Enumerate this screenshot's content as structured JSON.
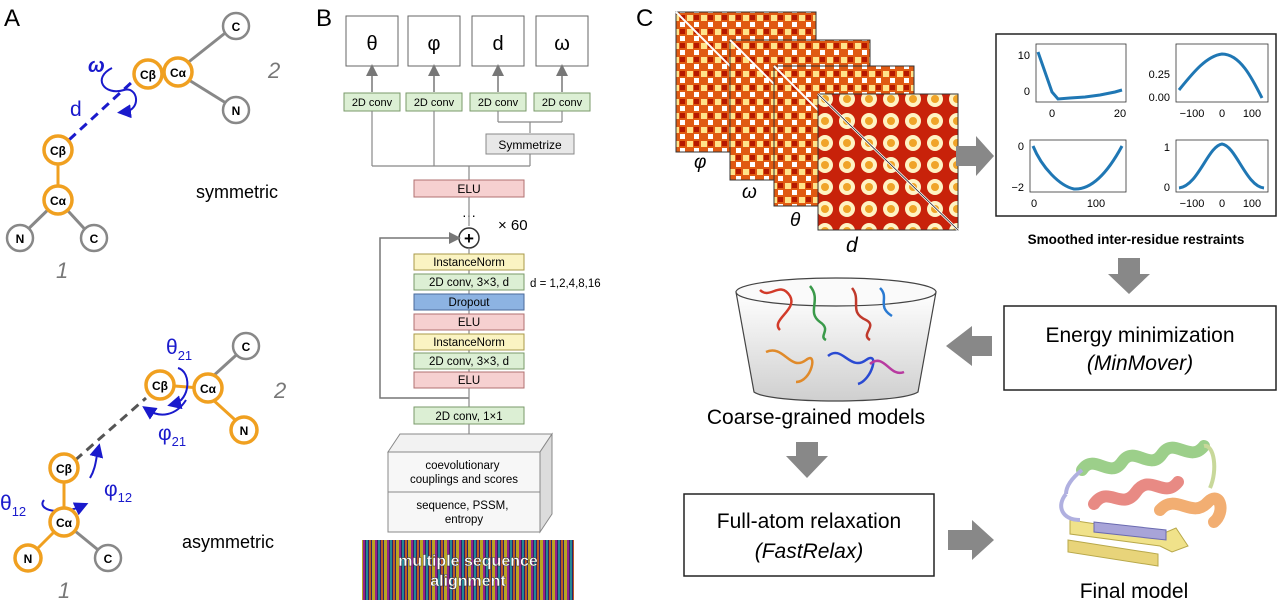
{
  "panels": {
    "a": "A",
    "b": "B",
    "c": "C"
  },
  "panelA": {
    "sym": {
      "atoms": {
        "cb1": "Cβ",
        "ca1": "Cα",
        "n1": "N",
        "c1": "C",
        "cb2": "Cβ",
        "ca2": "Cα",
        "n2": "N",
        "c2": "C"
      },
      "omega": "ω",
      "d": "d",
      "res1": "1",
      "res2": "2",
      "label": "symmetric"
    },
    "asym": {
      "atoms": {
        "cb1": "Cβ",
        "ca1": "Cα",
        "n1": "N",
        "c1": "C",
        "cb2": "Cβ",
        "ca2": "Cα",
        "n2": "N",
        "c2": "C"
      },
      "theta21": "θ",
      "theta21_sub": "21",
      "phi21": "φ",
      "phi21_sub": "21",
      "theta12": "θ",
      "theta12_sub": "12",
      "phi12": "φ",
      "phi12_sub": "12",
      "res1": "1",
      "res2": "2",
      "label": "asymmetric"
    }
  },
  "panelB": {
    "outputs": [
      "θ",
      "φ",
      "d",
      "ω"
    ],
    "conv_heads": [
      "2D conv",
      "2D conv",
      "2D conv",
      "2D conv"
    ],
    "symmetrize": "Symmetrize",
    "elu_top": "ELU",
    "dots": "···",
    "repeat": "× 60",
    "plus": "+",
    "block": [
      "InstanceNorm",
      "2D conv, 3×3, d",
      "Dropout",
      "ELU",
      "InstanceNorm",
      "2D conv, 3×3, d",
      "ELU"
    ],
    "dilation": "d = 1,2,4,8,16",
    "conv1x1": "2D conv, 1×1",
    "input_top": "coevolutionary couplings and scores",
    "input_top_l1": "coevolutionary",
    "input_top_l2": "couplings and scores",
    "input_bottom_l1": "sequence, PSSM,",
    "input_bottom_l2": "entropy",
    "msa_l1": "multiple sequence",
    "msa_l2": "alignment",
    "colors": {
      "conv": "#dcefd4",
      "elu": "#f6d0d0",
      "norm": "#faf3c2",
      "dropout": "#8db3e2"
    }
  },
  "panelC": {
    "map_labels": [
      "φ",
      "ω",
      "θ",
      "d"
    ],
    "restraints_title": "Smoothed inter-residue restraints",
    "plots": [
      {
        "yticks": [
          "10",
          "0"
        ],
        "xticks": [
          "0",
          "20"
        ]
      },
      {
        "yticks": [
          "0.25",
          "0.00"
        ],
        "xticks": [
          "−100",
          "0",
          "100"
        ]
      },
      {
        "yticks": [
          "0",
          "−2"
        ],
        "xticks": [
          "0",
          "100"
        ]
      },
      {
        "yticks": [
          "1",
          "0"
        ],
        "xticks": [
          "−100",
          "0",
          "100"
        ]
      }
    ],
    "energy_l1": "Energy minimization",
    "energy_l2": "(MinMover)",
    "coarse": "Coarse-grained models",
    "relax_l1": "Full-atom relaxation",
    "relax_l2": "(FastRelax)",
    "final": "Final model"
  }
}
